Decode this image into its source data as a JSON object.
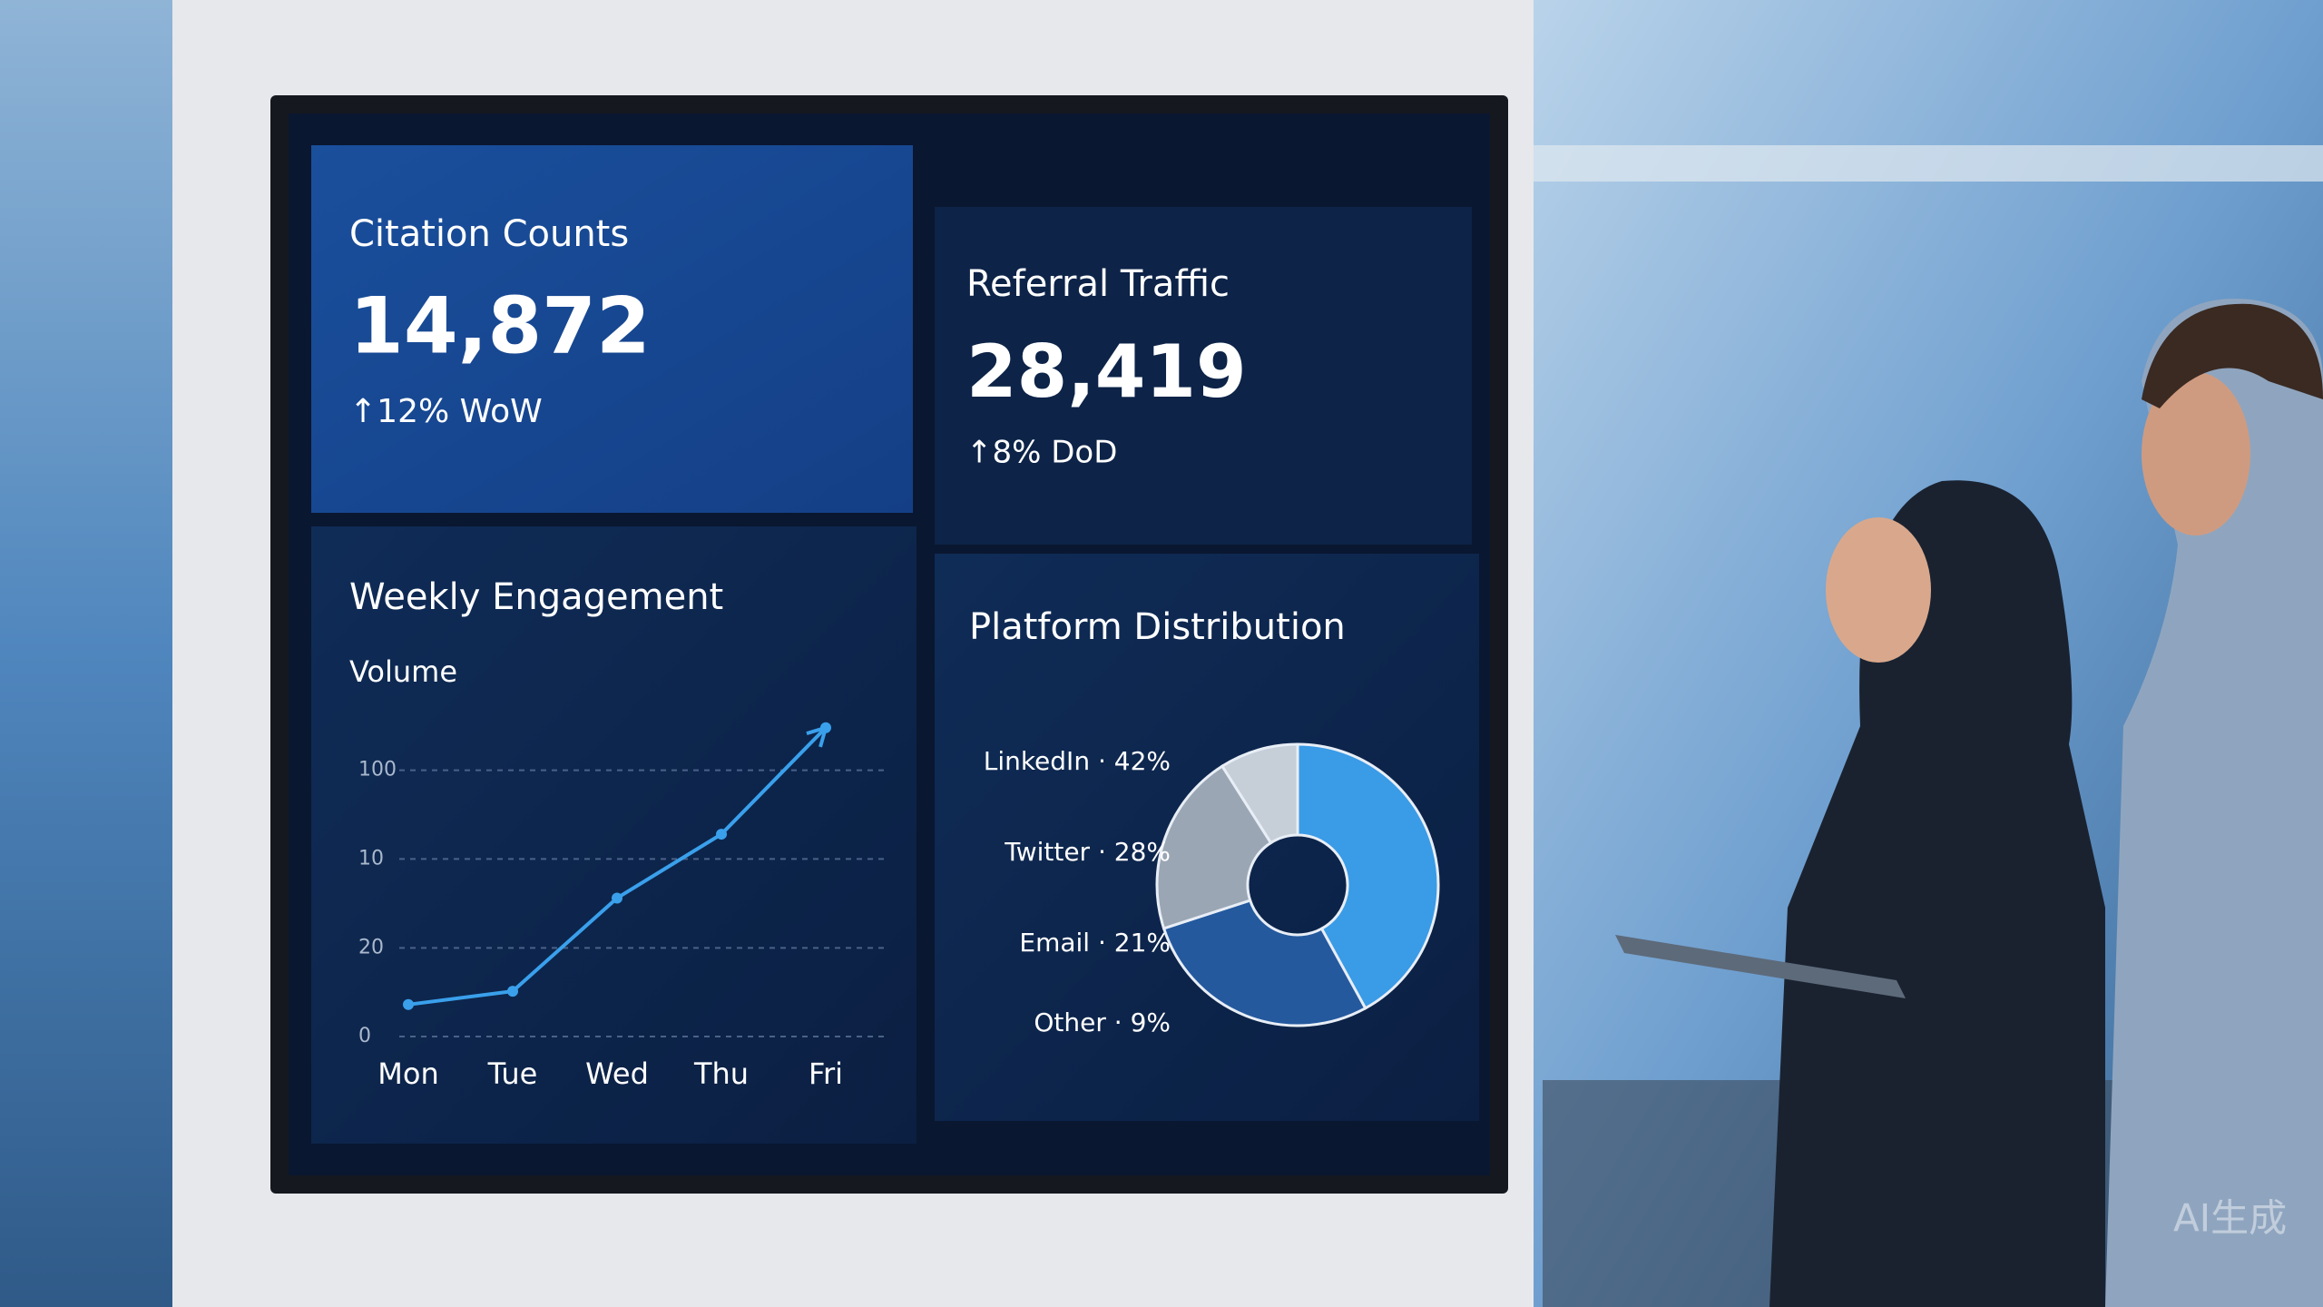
{
  "cards": [
    {
      "title": "Citation Counts",
      "value": "14,872",
      "change": "↑12% WoW"
    },
    {
      "title": "Referral Traffic",
      "value": "28,419",
      "change": "↑8% DoD"
    }
  ],
  "chart_data": [
    {
      "type": "line",
      "title": "Weekly Engagement",
      "ylabel": "Volume",
      "categories": [
        "Mon",
        "Tue",
        "Wed",
        "Thu",
        "Fri"
      ],
      "series": [
        {
          "color": "#3aa0ec",
          "values": [
            12,
            17,
            52,
            76,
            116
          ]
        }
      ],
      "ylim": [
        0,
        120
      ],
      "yticks": [
        0,
        {
          "value": 33.3,
          "label": "20"
        },
        {
          "value": 66.7,
          "label": "10"
        },
        100
      ],
      "grid": true
    },
    {
      "type": "pie",
      "title": "Platform Distribution",
      "categories": [
        "LinkedIn",
        "Twitter",
        "Email",
        "Other"
      ],
      "values": [
        42,
        28,
        21,
        9
      ],
      "value_labels": [
        "LinkedIn · 42%",
        "Twitter · 28%",
        "Email · 21%",
        "Other · 9%"
      ],
      "colors": [
        "#3a9be6",
        "#24599e",
        "#9aa6b4",
        "#c6ced8"
      ],
      "donut": true
    }
  ],
  "watermark": "AI生成"
}
